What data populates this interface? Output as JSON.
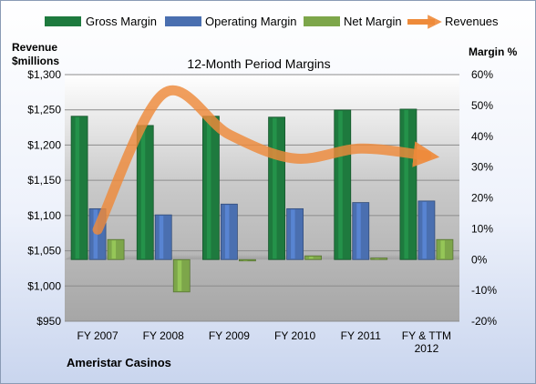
{
  "chart_data": {
    "type": "bar",
    "title": "12-Month Period Margins",
    "company": "Ameristar Casinos",
    "left_axis_title_line1": "Revenue",
    "left_axis_title_line2": "$millions",
    "right_axis_title": "Margin %",
    "categories": [
      "FY 2007",
      "FY 2008",
      "FY 2009",
      "FY 2010",
      "FY 2011",
      "FY & TTM 2012"
    ],
    "category_lines": [
      [
        "FY 2007"
      ],
      [
        "FY 2008"
      ],
      [
        "FY 2009"
      ],
      [
        "FY 2010"
      ],
      [
        "FY 2011"
      ],
      [
        "FY & TTM",
        "2012"
      ]
    ],
    "left_ylim": [
      950,
      1300
    ],
    "left_ticks": [
      "$950",
      "$1,000",
      "$1,050",
      "$1,100",
      "$1,150",
      "$1,200",
      "$1,250",
      "$1,300"
    ],
    "right_ylim": [
      -20,
      60
    ],
    "right_ticks": [
      "-20%",
      "-10%",
      "0%",
      "10%",
      "20%",
      "30%",
      "40%",
      "50%",
      "60%"
    ],
    "series": [
      {
        "name": "Gross Margin",
        "axis": "right",
        "color": "#1e7a3e",
        "values": [
          46.5,
          43.5,
          46.5,
          46.2,
          48.5,
          48.8
        ]
      },
      {
        "name": "Operating Margin",
        "axis": "right",
        "color": "#4a6fb0",
        "values": [
          16.5,
          14.5,
          18.0,
          16.5,
          18.5,
          19.0
        ]
      },
      {
        "name": "Net Margin",
        "axis": "right",
        "color": "#7da64a",
        "values": [
          6.5,
          -10.5,
          -0.3,
          1.2,
          0.5,
          6.5
        ]
      },
      {
        "name": "Revenues",
        "axis": "left",
        "color": "#ee8a3a",
        "values": [
          1080,
          1273,
          1215,
          1181,
          1195,
          1185
        ]
      }
    ],
    "grid": true,
    "legend_position": "top"
  }
}
